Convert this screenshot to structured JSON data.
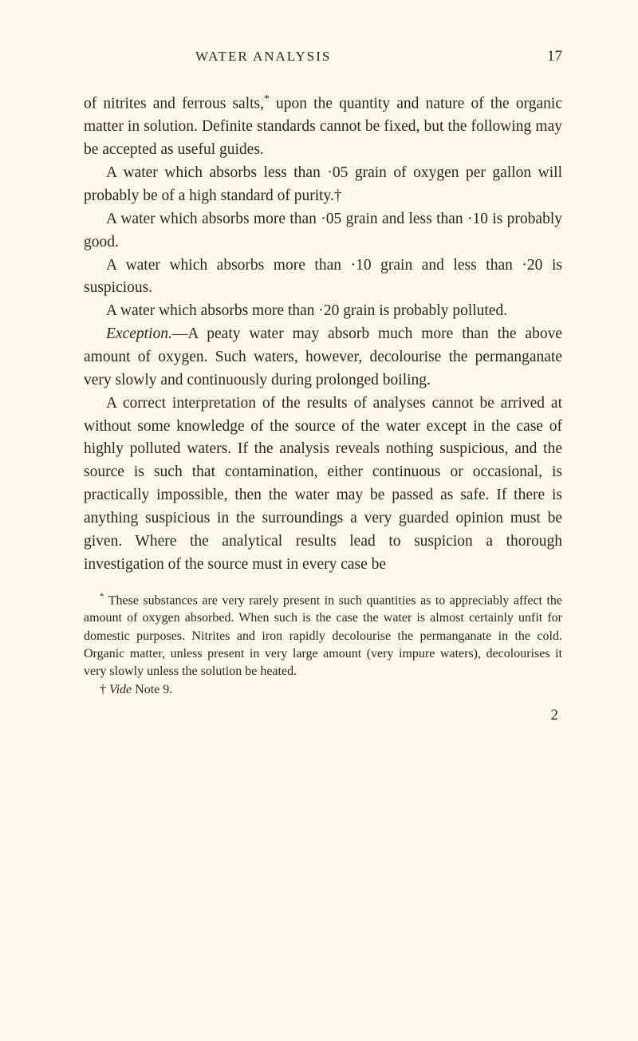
{
  "header": {
    "title": "WATER ANALYSIS",
    "page_number": "17"
  },
  "paragraphs": {
    "p1_a": "of nitrites and ferrous salts,",
    "p1_marker": "*",
    "p1_b": " upon the quantity and nature of the organic matter in solution. Definite standards cannot be fixed, but the following may be accepted as useful guides.",
    "p2_a": "A water which absorbs less than ·05 grain of oxygen per gallon will probably be of a high standard of purity.",
    "p2_marker": "†",
    "p3": "A water which absorbs more than ·05 grain and less than ·10 is probably good.",
    "p4": "A water which absorbs more than ·10 grain and less than ·20 is suspicious.",
    "p5": "A water which absorbs more than ·20 grain is probably polluted.",
    "p6_label": "Exception.",
    "p6_body": "—A peaty water may absorb much more than the above amount of oxygen. Such waters, however, decolourise the permanganate very slowly and continuously during prolonged boiling.",
    "p7": "A correct interpretation of the results of analyses cannot be arrived at without some knowledge of the source of the water except in the case of highly polluted waters. If the analysis reveals nothing suspicious, and the source is such that contamination, either continuous or occasional, is practically impossible, then the water may be passed as safe. If there is anything suspicious in the surroundings a very guarded opinion must be given. Where the analytical results lead to suspicion a thorough investigation of the source must in every case be"
  },
  "footnotes": {
    "fn1_marker": "*",
    "fn1_text": " These substances are very rarely present in such quantities as to appreciably affect the amount of oxygen absorbed. When such is the case the water is almost certainly unfit for domestic purposes. Nitrites and iron rapidly decolourise the permanganate in the cold. Organic matter, unless present in very large amount (very impure waters), decolourises it very slowly unless the solution be heated.",
    "fn2_marker": "†",
    "fn2_a": " ",
    "fn2_vide": "Vide",
    "fn2_b": " Note 9."
  },
  "bottom_number": "2",
  "colors": {
    "background": "#fdf8e8",
    "text": "#2a2a1a"
  }
}
